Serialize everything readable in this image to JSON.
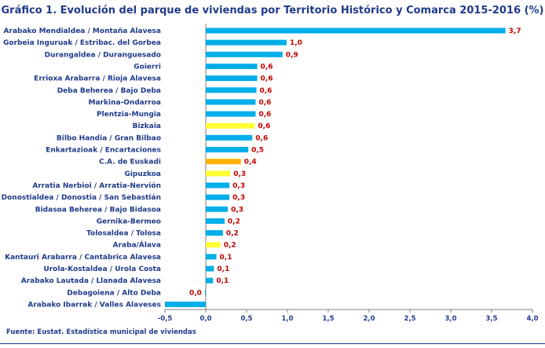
{
  "chart_data": {
    "type": "bar",
    "orientation": "horizontal",
    "title": "Gráfico 1. Evolución del parque de viviendas por Territorio Histórico y Comarca 2015-2016 (%)",
    "categories": [
      "Arabako Mendialdea / Montaña Alavesa",
      "Gorbeia Inguruak / Estribac. del Gorbea",
      "Durangaldea / Duranguesado",
      "Goierri",
      "Errioxa Arabarra / Rioja Alavesa",
      "Deba Beherea / Bajo Deba",
      "Markina-Ondarroa",
      "Plentzia-Mungia",
      "Bizkaia",
      "Bilbo Handia / Gran Bilbao",
      "Enkartazioak / Encartaciones",
      "C.A. de Euskadi",
      "Gipuzkoa",
      "Arratia Nerbioi / Arratia-Nervión",
      "Donostialdea / Donostia / San Sebastián",
      "Bidasoa Beherea / Bajo Bidasoa",
      "Gernika-Bermeo",
      "Tolosaldea / Tolosa",
      "Araba/Álava",
      "Kantauri Arabarra / Cantábrica Alavesa",
      "Urola-Kostaldea / Urola Costa",
      "Arabako Lautada / Llanada Alavesa",
      "Debagoiena / Alto Deba",
      "Arabako Ibarrak / Valles Alaveses"
    ],
    "values": [
      3.67,
      0.99,
      0.94,
      0.63,
      0.63,
      0.62,
      0.61,
      0.61,
      0.6,
      0.57,
      0.52,
      0.43,
      0.3,
      0.29,
      0.29,
      0.27,
      0.23,
      0.21,
      0.18,
      0.13,
      0.1,
      0.09,
      -0.01,
      -0.5
    ],
    "value_labels": [
      "3,7",
      "1,0",
      "0,9",
      "0,6",
      "0,6",
      "0,6",
      "0,6",
      "0,6",
      "0,6",
      "0,6",
      "0,5",
      "0,4",
      "0,3",
      "0,3",
      "0,3",
      "0,3",
      "0,2",
      "0,2",
      "0,2",
      "0,1",
      "0,1",
      "0,1",
      "0,0",
      ""
    ],
    "bar_colors": [
      "#00aee8",
      "#00aee8",
      "#00aee8",
      "#00aee8",
      "#00aee8",
      "#00aee8",
      "#00aee8",
      "#00aee8",
      "#ffff33",
      "#00aee8",
      "#00aee8",
      "#ffb300",
      "#ffff33",
      "#00aee8",
      "#00aee8",
      "#00aee8",
      "#00aee8",
      "#00aee8",
      "#ffff33",
      "#00aee8",
      "#00aee8",
      "#00aee8",
      "#00aee8",
      "#00aee8"
    ],
    "xlim": [
      -0.5,
      4.0
    ],
    "xticks": [
      -0.5,
      0.0,
      0.5,
      1.0,
      1.5,
      2.0,
      2.5,
      3.0,
      3.5,
      4.0
    ],
    "xtick_labels": [
      "-0,5",
      "0,0",
      "0,5",
      "1,0",
      "1,5",
      "2,0",
      "2,5",
      "3,0",
      "3,5",
      "4,0"
    ],
    "grid": false,
    "xlabel": "",
    "ylabel": ""
  },
  "footer": {
    "source": "Fuente: Eustat. Estadística municipal de viviendas"
  }
}
